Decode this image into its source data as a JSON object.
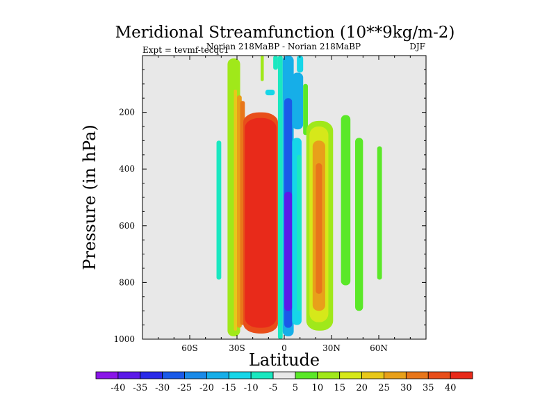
{
  "chart_data": {
    "type": "heatmap",
    "title": "Meridional Streamfunction (10**9kg/m-2)",
    "subtitle_left": "Expt = tevmf-tecqc1",
    "subtitle_center": "Norian 218MaBP - Norian 218MaBP",
    "subtitle_right": "DJF",
    "xlabel": "Latitude",
    "ylabel": "Pressure (in hPa)",
    "xlim": [
      -90,
      90
    ],
    "ylim": [
      1000,
      0
    ],
    "x_ticks": [
      {
        "value": -60,
        "label": "60S"
      },
      {
        "value": -30,
        "label": "30S"
      },
      {
        "value": 0,
        "label": "0"
      },
      {
        "value": 30,
        "label": "30N"
      },
      {
        "value": 60,
        "label": "60N"
      }
    ],
    "y_ticks": [
      {
        "value": 200,
        "label": "200"
      },
      {
        "value": 400,
        "label": "400"
      },
      {
        "value": 600,
        "label": "600"
      },
      {
        "value": 800,
        "label": "800"
      },
      {
        "value": 1000,
        "label": "1000"
      }
    ],
    "colorbar_levels": [
      "-40",
      "-35",
      "-30",
      "-25",
      "-20",
      "-15",
      "-10",
      "-5",
      "5",
      "10",
      "15",
      "20",
      "25",
      "30",
      "35",
      "40"
    ],
    "colorbar_colors": [
      "#8a16e8",
      "#5b1ae8",
      "#2a2ae8",
      "#1a5ae8",
      "#1a8ae8",
      "#16aee8",
      "#16d6e8",
      "#1ae8c0",
      "#e8e8e8",
      "#5ae828",
      "#a0e81a",
      "#d6e81a",
      "#e8c81a",
      "#e8a01a",
      "#e8761a",
      "#e84e1a",
      "#e82a1a"
    ],
    "background_color": "#e8e8e8",
    "cells": [
      {
        "lat": [
          -43,
          -40
        ],
        "p": [
          300,
          790
        ],
        "value": -7
      },
      {
        "lat": [
          -36,
          -28
        ],
        "p": [
          10,
          990
        ],
        "value": 12
      },
      {
        "lat": [
          -32,
          -30
        ],
        "p": [
          120,
          970
        ],
        "value": 22
      },
      {
        "lat": [
          -30,
          -27
        ],
        "p": [
          140,
          960
        ],
        "value": 28
      },
      {
        "lat": [
          -28,
          -25
        ],
        "p": [
          160,
          950
        ],
        "value": 33
      },
      {
        "lat": [
          -26,
          -4
        ],
        "p": [
          200,
          980
        ],
        "value": 38
      },
      {
        "lat": [
          -25,
          -5
        ],
        "p": [
          220,
          960
        ],
        "value": 42
      },
      {
        "lat": [
          -15,
          -13
        ],
        "p": [
          0,
          90
        ],
        "value": 12
      },
      {
        "lat": [
          -12,
          -6
        ],
        "p": [
          120,
          140
        ],
        "value": -12
      },
      {
        "lat": [
          -4,
          -1
        ],
        "p": [
          0,
          1000
        ],
        "value": -8
      },
      {
        "lat": [
          -1,
          6
        ],
        "p": [
          0,
          990
        ],
        "value": -20
      },
      {
        "lat": [
          0,
          5
        ],
        "p": [
          150,
          960
        ],
        "value": -30
      },
      {
        "lat": [
          0,
          5
        ],
        "p": [
          480,
          900
        ],
        "value": -38
      },
      {
        "lat": [
          -7,
          -4
        ],
        "p": [
          0,
          50
        ],
        "value": -10
      },
      {
        "lat": [
          8,
          12
        ],
        "p": [
          0,
          60
        ],
        "value": -12
      },
      {
        "lat": [
          5,
          12
        ],
        "p": [
          60,
          260
        ],
        "value": -20
      },
      {
        "lat": [
          5,
          11
        ],
        "p": [
          290,
          950
        ],
        "value": -12
      },
      {
        "lat": [
          8,
          11
        ],
        "p": [
          350,
          900
        ],
        "value": -8
      },
      {
        "lat": [
          12,
          15
        ],
        "p": [
          100,
          280
        ],
        "value": 8
      },
      {
        "lat": [
          14,
          31
        ],
        "p": [
          230,
          970
        ],
        "value": 10
      },
      {
        "lat": [
          16,
          28
        ],
        "p": [
          250,
          940
        ],
        "value": 18
      },
      {
        "lat": [
          18,
          26
        ],
        "p": [
          300,
          900
        ],
        "value": 25
      },
      {
        "lat": [
          20,
          24
        ],
        "p": [
          380,
          840
        ],
        "value": 32
      },
      {
        "lat": [
          36,
          42
        ],
        "p": [
          210,
          810
        ],
        "value": 8
      },
      {
        "lat": [
          45,
          50
        ],
        "p": [
          290,
          900
        ],
        "value": 8
      },
      {
        "lat": [
          59,
          62
        ],
        "p": [
          320,
          790
        ],
        "value": 8
      }
    ]
  }
}
